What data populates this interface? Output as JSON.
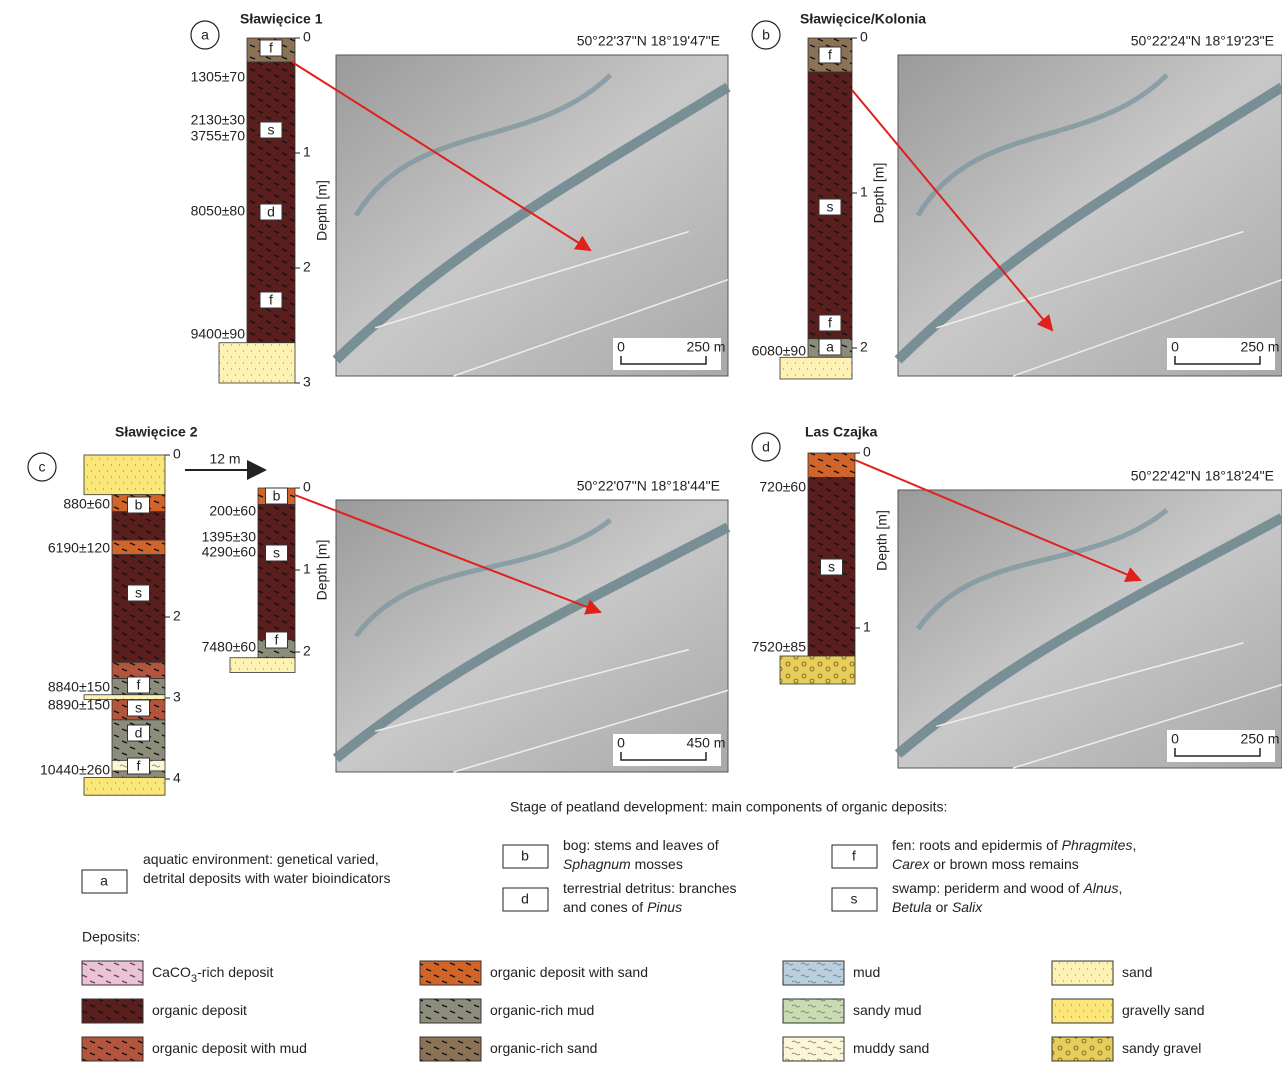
{
  "panels": [
    {
      "letter": "a",
      "title": "Sławięcice 1",
      "coordinates": "50°22'37\"N 18°19'47\"E",
      "scale": [
        "0",
        "250 m"
      ],
      "columns": [
        {
          "depth_label": "Depth [m]",
          "ticks": [
            0,
            1,
            2,
            3
          ],
          "layers": [
            {
              "from": 0,
              "to": 0.21,
              "color": "#8b7257"
            },
            {
              "from": 0.21,
              "to": 2.65,
              "color": "#5a1f1c"
            },
            {
              "from": 2.65,
              "to": 3.0,
              "color": "#fdf2b3"
            }
          ],
          "codes": [
            "f",
            "s",
            "d",
            "f"
          ],
          "dates": [
            "1305±70",
            "2130±30",
            "3755±70",
            "8050±80",
            "9400±90"
          ]
        }
      ]
    },
    {
      "letter": "b",
      "title": "Sławięcice/Kolonia",
      "coordinates": "50°22'24\"N 18°19'23\"E",
      "scale": [
        "0",
        "250 m"
      ],
      "columns": [
        {
          "depth_label": "Depth [m]",
          "ticks": [
            0,
            1,
            2
          ],
          "layers": [
            {
              "from": 0,
              "to": 0.22,
              "color": "#8b7257"
            },
            {
              "from": 0.22,
              "to": 1.94,
              "color": "#5a1f1c"
            },
            {
              "from": 1.94,
              "to": 2.06,
              "color": "#8c8c7a"
            },
            {
              "from": 2.06,
              "to": 2.2,
              "color": "#fdf2b3"
            }
          ],
          "codes": [
            "f",
            "s",
            "f",
            "a"
          ],
          "dates": [
            "6080±90"
          ]
        }
      ]
    },
    {
      "letter": "c",
      "title": "Sławięcice 2",
      "coordinates": "50°22'07\"N 18°18'44\"E",
      "scale": [
        "0",
        "450 m"
      ],
      "offset_label": "12 m",
      "columns": [
        {
          "ticks": [
            0,
            2,
            3,
            4
          ],
          "layers": [
            {
              "from": 0,
              "to": 0.49,
              "color": "#fbe67a"
            },
            {
              "from": 0.49,
              "to": 0.7,
              "color": "#d2642a"
            },
            {
              "from": 0.7,
              "to": 1.05,
              "color": "#5a1f1c"
            },
            {
              "from": 1.05,
              "to": 1.23,
              "color": "#d2642a"
            },
            {
              "from": 1.23,
              "to": 2.56,
              "color": "#5a1f1c"
            },
            {
              "from": 2.56,
              "to": 2.76,
              "color": "#b3553c"
            },
            {
              "from": 2.76,
              "to": 2.96,
              "color": "#8c8c7a"
            },
            {
              "from": 2.96,
              "to": 3.02,
              "color": "#fdf2b3"
            },
            {
              "from": 3.02,
              "to": 3.27,
              "color": "#b3553c"
            },
            {
              "from": 3.27,
              "to": 3.77,
              "color": "#8c8c7a"
            },
            {
              "from": 3.77,
              "to": 3.9,
              "color": "#fdf6d6"
            },
            {
              "from": 3.9,
              "to": 3.98,
              "color": "#8c8c7a"
            },
            {
              "from": 3.98,
              "to": 4.2,
              "color": "#fbe67a"
            }
          ],
          "codes": [
            "b",
            "s",
            "f",
            "s",
            "d",
            "f"
          ],
          "dates": [
            "880±60",
            "6190±120",
            "8840±150",
            "8890±150",
            "10440±260"
          ]
        },
        {
          "depth_label": "Depth [m]",
          "ticks": [
            0,
            1,
            2
          ],
          "layers": [
            {
              "from": 0,
              "to": 0.2,
              "color": "#d2642a"
            },
            {
              "from": 0.2,
              "to": 1.85,
              "color": "#5a1f1c"
            },
            {
              "from": 1.85,
              "to": 2.07,
              "color": "#8c8c7a"
            },
            {
              "from": 2.07,
              "to": 2.25,
              "color": "#fdf2b3"
            }
          ],
          "codes": [
            "b",
            "s",
            "f"
          ],
          "dates": [
            "200±60",
            "1395±30",
            "4290±60",
            "7480±60"
          ]
        }
      ]
    },
    {
      "letter": "d",
      "title": "Las Czajka",
      "coordinates": "50°22'42\"N 18°18'24\"E",
      "scale": [
        "0",
        "250 m"
      ],
      "columns": [
        {
          "depth_label": "Depth [m]",
          "ticks": [
            0,
            1
          ],
          "layers": [
            {
              "from": 0,
              "to": 0.14,
              "color": "#d2642a"
            },
            {
              "from": 0.14,
              "to": 1.16,
              "color": "#5a1f1c"
            },
            {
              "from": 1.16,
              "to": 1.32,
              "color": "#e6cd5c"
            }
          ],
          "codes": [
            "s"
          ],
          "dates": [
            "720±60",
            "7520±85"
          ]
        }
      ]
    }
  ],
  "stage_legend": {
    "title": "Stage of peatland development: main components of organic deposits:",
    "items": [
      {
        "code": "a",
        "lines": [
          [
            {
              "text": "aquatic environment: genetical varied,"
            }
          ],
          [
            {
              "text": "detrital deposits with water bioindicators"
            }
          ]
        ]
      },
      {
        "code": "b",
        "lines": [
          [
            {
              "text": "bog: stems and leaves of"
            }
          ],
          [
            {
              "text": "Sphagnum",
              "italic": true
            },
            {
              "text": " mosses"
            }
          ]
        ]
      },
      {
        "code": "d",
        "lines": [
          [
            {
              "text": "terrestrial detritus: branches"
            }
          ],
          [
            {
              "text": "and cones of "
            },
            {
              "text": "Pinus",
              "italic": true
            }
          ]
        ]
      },
      {
        "code": "f",
        "lines": [
          [
            {
              "text": "fen: roots and epidermis of "
            },
            {
              "text": "Phragmites",
              "italic": true
            },
            {
              "text": ","
            }
          ],
          [
            {
              "text": "Carex",
              "italic": true
            },
            {
              "text": " or brown moss remains"
            }
          ]
        ]
      },
      {
        "code": "s",
        "lines": [
          [
            {
              "text": "swamp: periderm and wood of "
            },
            {
              "text": "Alnus",
              "italic": true
            },
            {
              "text": ","
            }
          ],
          [
            {
              "text": "Betula",
              "italic": true
            },
            {
              "text": " or "
            },
            {
              "text": "Salix",
              "italic": true
            }
          ]
        ]
      }
    ]
  },
  "deposits_legend": {
    "title": "Deposits:",
    "items": [
      {
        "label": [
          {
            "text": "CaCO"
          },
          {
            "text": "3",
            "sub": true
          },
          {
            "text": "-rich deposit"
          }
        ],
        "color": "#e8c3d6"
      },
      {
        "label": [
          {
            "text": "organic deposit"
          }
        ],
        "color": "#5a1f1c"
      },
      {
        "label": [
          {
            "text": "organic deposit with mud"
          }
        ],
        "color": "#b3553c"
      },
      {
        "label": [
          {
            "text": "organic deposit with sand"
          }
        ],
        "color": "#d2642a"
      },
      {
        "label": [
          {
            "text": "organic-rich mud"
          }
        ],
        "color": "#8c8c7a"
      },
      {
        "label": [
          {
            "text": "organic-rich sand"
          }
        ],
        "color": "#8b7257"
      },
      {
        "label": [
          {
            "text": "mud"
          }
        ],
        "color": "#b9cfe0"
      },
      {
        "label": [
          {
            "text": "sandy mud"
          }
        ],
        "color": "#c9dbb0"
      },
      {
        "label": [
          {
            "text": "muddy sand"
          }
        ],
        "color": "#fdf6d6"
      },
      {
        "label": [
          {
            "text": "sand"
          }
        ],
        "color": "#fdf2b3"
      },
      {
        "label": [
          {
            "text": "gravelly sand"
          }
        ],
        "color": "#fbe67a"
      },
      {
        "label": [
          {
            "text": "sandy gravel"
          }
        ],
        "color": "#e6cd5c"
      }
    ]
  }
}
